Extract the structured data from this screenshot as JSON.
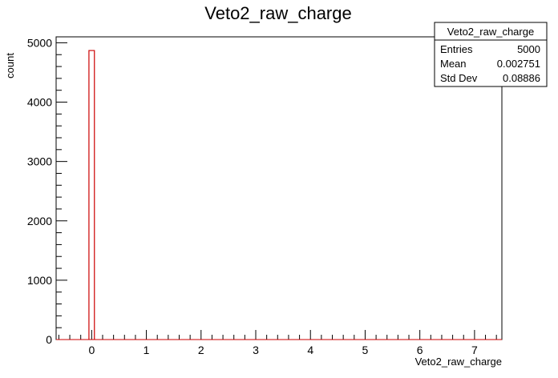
{
  "chart_data": {
    "type": "bar",
    "title": "Veto2_raw_charge",
    "xlabel": "Veto2_raw_charge",
    "ylabel": "count",
    "xlim": [
      -0.65,
      7.5
    ],
    "ylim": [
      0,
      5100
    ],
    "x_ticks": [
      "0",
      "1",
      "2",
      "3",
      "4",
      "5",
      "6",
      "7"
    ],
    "y_ticks": [
      "0",
      "1000",
      "2000",
      "3000",
      "4000",
      "5000"
    ],
    "bins": [
      {
        "x0": -0.05,
        "x1": 0.05,
        "value": 4870
      }
    ],
    "line_color": "#cc0000",
    "stats": {
      "name": "Veto2_raw_charge",
      "rows": [
        {
          "label": "Entries",
          "value": "5000"
        },
        {
          "label": "Mean",
          "value": "0.002751"
        },
        {
          "label": "Std Dev",
          "value": "0.08886"
        }
      ]
    }
  }
}
